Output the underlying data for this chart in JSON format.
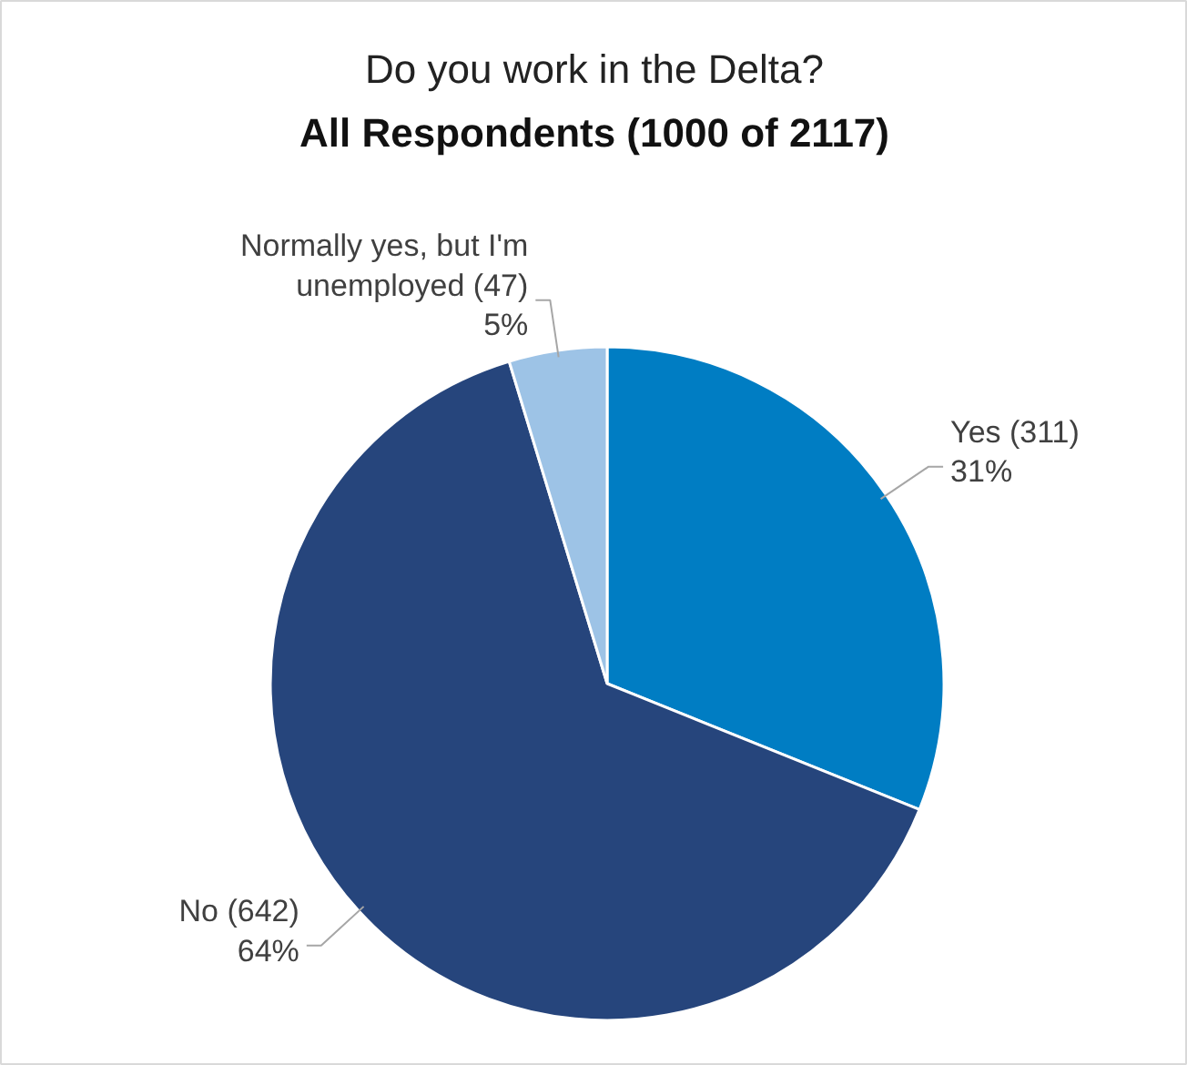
{
  "chart_data": {
    "type": "pie",
    "title": "Do you work in the Delta?",
    "subtitle": "All Respondents (1000 of 2117)",
    "categories": [
      "Yes",
      "No",
      "Normally yes, but I'm unemployed"
    ],
    "values": [
      311,
      642,
      47
    ],
    "value_labels": [
      "(311) 31%",
      "(642) 64%",
      "(47) 5%"
    ],
    "colors": [
      "#007dc3",
      "#26457c",
      "#9dc3e6"
    ]
  }
}
